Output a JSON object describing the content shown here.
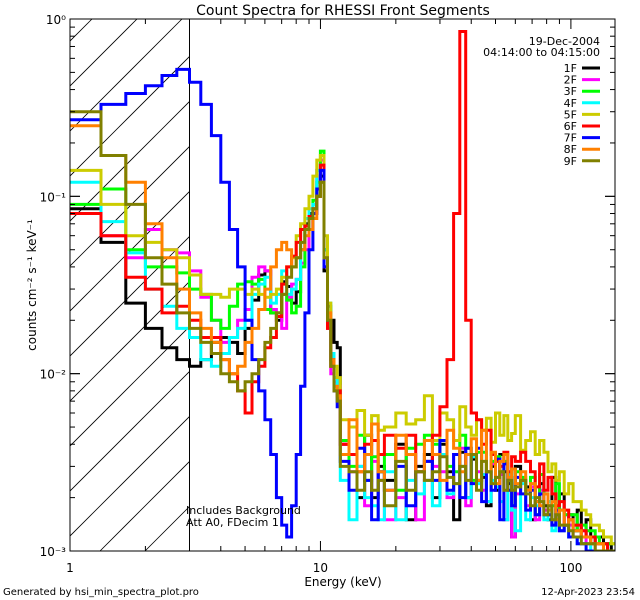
{
  "chart_data": {
    "type": "line",
    "title": "Count Spectra for RHESSI Front Segments",
    "xlabel": "Energy (keV)",
    "ylabel": "counts cm⁻² s⁻¹ keV⁻¹",
    "xscale": "log",
    "yscale": "log",
    "xlim": [
      1,
      150
    ],
    "ylim": [
      0.001,
      1
    ],
    "x_ticks": [
      {
        "value": 1,
        "label": "1"
      },
      {
        "value": 10,
        "label": "10"
      },
      {
        "value": 100,
        "label": "100"
      }
    ],
    "y_ticks": [
      {
        "value": 1,
        "label": "10⁰"
      },
      {
        "value": 0.1,
        "label": "10⁻¹"
      },
      {
        "value": 0.01,
        "label": "10⁻²"
      },
      {
        "value": 0.001,
        "label": "10⁻³"
      }
    ],
    "shaded_region": {
      "x_from": 1.0,
      "x_to": 3.0,
      "style": "hatched"
    },
    "date": "19-Dec-2004",
    "time_range": "04:14:00 to 04:15:00",
    "annotation_line1": "Includes Background",
    "annotation_line2": "Att A0, FDecim 1",
    "footer_left": "Generated by hsi_min_spectra_plot.pro",
    "footer_right": "12-Apr-2023 23:54",
    "bin_edges": [
      1.0,
      1.33,
      1.67,
      2.0,
      2.33,
      2.67,
      3.0,
      3.33,
      3.67,
      4.0,
      4.33,
      4.67,
      5.0,
      5.33,
      5.67,
      6.0,
      6.33,
      6.67,
      7.0,
      7.33,
      7.67,
      8.0,
      8.33,
      8.67,
      9.0,
      9.33,
      9.67,
      10.0,
      10.33,
      10.67,
      11.0,
      11.33,
      11.67,
      12.0,
      13.0,
      14.0,
      15.0,
      16.0,
      17.0,
      18.0,
      20.0,
      22.0,
      24.0,
      26.0,
      28.0,
      30.0,
      32.0,
      34.0,
      36.0,
      38.0,
      40.0,
      42.0,
      44.0,
      46.0,
      48.0,
      50.0,
      52.0,
      54.0,
      56.0,
      58.0,
      60.0,
      63.0,
      66.0,
      69.0,
      72.0,
      75.0,
      78.0,
      81.0,
      84.0,
      87.0,
      90.0,
      94.0,
      98.0,
      102.0,
      106.0,
      110.0,
      115.0,
      120.0,
      125.0,
      130.0,
      135.0,
      140.0,
      145.0,
      150.0
    ],
    "series": [
      {
        "name": "1F",
        "color": "#000000",
        "values": [
          0.085,
          0.055,
          0.025,
          0.018,
          0.014,
          0.012,
          0.011,
          0.012,
          0.015,
          0.016,
          0.015,
          0.013,
          0.018,
          0.026,
          0.036,
          0.038,
          0.022,
          0.02,
          0.033,
          0.031,
          0.025,
          0.029,
          0.05,
          0.07,
          0.08,
          0.08,
          0.1,
          0.13,
          0.038,
          0.024,
          0.02,
          0.015,
          0.014,
          0.004,
          0.0035,
          0.002,
          0.0045,
          0.002,
          0.003,
          0.0025,
          0.004,
          0.0015,
          0.003,
          0.0035,
          0.002,
          0.004,
          0.0028,
          0.0015,
          0.0036,
          0.002,
          0.0033,
          0.0025,
          0.0026,
          0.0018,
          0.003,
          0.0022,
          0.0035,
          0.0028,
          0.0024,
          0.0012,
          0.003,
          0.0025,
          0.0023,
          0.0015,
          0.0019,
          0.0024,
          0.0018,
          0.0015,
          0.0026,
          0.0015,
          0.0021,
          0.0014,
          0.0016,
          0.0013,
          0.0017,
          0.0012,
          0.0015,
          0.0011,
          0.0012,
          0.0012,
          0.0011,
          0.0011,
          0.001
        ]
      },
      {
        "name": "2F",
        "color": "#ff00ff",
        "values": [
          0.08,
          0.06,
          0.045,
          0.065,
          0.05,
          0.048,
          0.038,
          0.027,
          0.02,
          0.015,
          0.016,
          0.02,
          0.023,
          0.035,
          0.04,
          0.038,
          0.023,
          0.022,
          0.018,
          0.027,
          0.032,
          0.034,
          0.042,
          0.05,
          0.065,
          0.08,
          0.14,
          0.16,
          0.05,
          0.018,
          0.01,
          0.009,
          0.0085,
          0.004,
          0.0028,
          0.003,
          0.0018,
          0.0032,
          0.0025,
          0.0015,
          0.002,
          0.0035,
          0.0015,
          0.0025,
          0.003,
          0.0028,
          0.002,
          0.0035,
          0.0038,
          0.0018,
          0.0034,
          0.0028,
          0.0022,
          0.0019,
          0.0031,
          0.0026,
          0.0027,
          0.0015,
          0.0026,
          0.0012,
          0.0021,
          0.0025,
          0.0018,
          0.0023,
          0.0015,
          0.0022,
          0.0017,
          0.0018,
          0.0014,
          0.0016,
          0.0013,
          0.0016,
          0.0014,
          0.0012,
          0.0012,
          0.0013,
          0.0011,
          0.0011,
          0.001,
          0.001,
          0.001,
          0.001,
          0.001
        ]
      },
      {
        "name": "3F",
        "color": "#00ff00",
        "values": [
          0.09,
          0.11,
          0.05,
          0.04,
          0.04,
          0.037,
          0.03,
          0.028,
          0.02,
          0.018,
          0.024,
          0.032,
          0.033,
          0.032,
          0.034,
          0.023,
          0.022,
          0.022,
          0.028,
          0.026,
          0.022,
          0.024,
          0.04,
          0.065,
          0.075,
          0.095,
          0.12,
          0.18,
          0.05,
          0.02,
          0.011,
          0.008,
          0.0075,
          0.0042,
          0.003,
          0.0045,
          0.0025,
          0.0034,
          0.0028,
          0.0035,
          0.0022,
          0.0038,
          0.004,
          0.0045,
          0.004,
          0.0035,
          0.003,
          0.0028,
          0.0045,
          0.0038,
          0.0025,
          0.0036,
          0.0036,
          0.0028,
          0.0032,
          0.0034,
          0.0028,
          0.0032,
          0.0026,
          0.0018,
          0.0028,
          0.0026,
          0.0022,
          0.0026,
          0.0016,
          0.0027,
          0.0021,
          0.0019,
          0.0018,
          0.0024,
          0.0017,
          0.0016,
          0.0016,
          0.0016,
          0.0013,
          0.0014,
          0.0013,
          0.0013,
          0.0012,
          0.0011,
          0.0011,
          0.0011,
          0.0011
        ]
      },
      {
        "name": "4F",
        "color": "#00ffff",
        "values": [
          0.12,
          0.072,
          0.048,
          0.03,
          0.024,
          0.018,
          0.016,
          0.012,
          0.011,
          0.013,
          0.016,
          0.018,
          0.02,
          0.028,
          0.032,
          0.035,
          0.025,
          0.028,
          0.038,
          0.028,
          0.03,
          0.034,
          0.055,
          0.075,
          0.085,
          0.09,
          0.14,
          0.15,
          0.05,
          0.025,
          0.013,
          0.0095,
          0.008,
          0.0025,
          0.0015,
          0.003,
          0.002,
          0.0018,
          0.0015,
          0.0028,
          0.0015,
          0.0025,
          0.0021,
          0.0025,
          0.0018,
          0.0035,
          0.0021,
          0.0024,
          0.003,
          0.002,
          0.0034,
          0.0024,
          0.0027,
          0.0019,
          0.0025,
          0.0023,
          0.0019,
          0.0015,
          0.0027,
          0.0017,
          0.0013,
          0.0024,
          0.0015,
          0.002,
          0.0018,
          0.0021,
          0.0015,
          0.0019,
          0.0013,
          0.0016,
          0.0013,
          0.0014,
          0.0012,
          0.0012,
          0.0011,
          0.0011,
          0.0011,
          0.001,
          0.001,
          0.001,
          0.001,
          0.001,
          0.001
        ]
      },
      {
        "name": "5F",
        "color": "#cccc00",
        "values": [
          0.14,
          0.09,
          0.06,
          0.055,
          0.05,
          0.045,
          0.036,
          0.028,
          0.028,
          0.027,
          0.03,
          0.03,
          0.028,
          0.03,
          0.028,
          0.027,
          0.028,
          0.03,
          0.035,
          0.04,
          0.045,
          0.06,
          0.07,
          0.085,
          0.1,
          0.13,
          0.16,
          0.17,
          0.06,
          0.025,
          0.012,
          0.011,
          0.0095,
          0.0055,
          0.005,
          0.0062,
          0.0045,
          0.0058,
          0.0048,
          0.005,
          0.006,
          0.0052,
          0.0055,
          0.0075,
          0.0042,
          0.006,
          0.0055,
          0.0042,
          0.0065,
          0.005,
          0.0045,
          0.0055,
          0.0048,
          0.0056,
          0.0041,
          0.006,
          0.0045,
          0.0058,
          0.0042,
          0.0046,
          0.0058,
          0.0037,
          0.0042,
          0.0047,
          0.0035,
          0.0042,
          0.0036,
          0.0028,
          0.0031,
          0.0025,
          0.0028,
          0.0021,
          0.0024,
          0.0019,
          0.0019,
          0.0017,
          0.0016,
          0.0014,
          0.0014,
          0.0013,
          0.0012,
          0.0012,
          0.0011
        ]
      },
      {
        "name": "6F",
        "color": "#ff0000",
        "values": [
          0.08,
          0.06,
          0.035,
          0.03,
          0.022,
          0.024,
          0.02,
          0.016,
          0.016,
          0.012,
          0.01,
          0.008,
          0.006,
          0.009,
          0.011,
          0.014,
          0.016,
          0.021,
          0.032,
          0.04,
          0.046,
          0.055,
          0.065,
          0.068,
          0.077,
          0.085,
          0.1,
          0.15,
          0.04,
          0.018,
          0.011,
          0.008,
          0.008,
          0.004,
          0.0035,
          0.0028,
          0.004,
          0.0042,
          0.0035,
          0.0045,
          0.0038,
          0.0045,
          0.0028,
          0.0032,
          0.0045,
          0.0065,
          0.012,
          0.08,
          0.85,
          0.02,
          0.006,
          0.0055,
          0.004,
          0.0048,
          0.0035,
          0.0032,
          0.003,
          0.0036,
          0.0028,
          0.0034,
          0.0032,
          0.0036,
          0.0032,
          0.0028,
          0.0023,
          0.0031,
          0.0022,
          0.0026,
          0.0021,
          0.0018,
          0.0019,
          0.0017,
          0.0015,
          0.0014,
          0.0014,
          0.0013,
          0.0012,
          0.0012,
          0.0011,
          0.0011,
          0.0011,
          0.001,
          0.001
        ]
      },
      {
        "name": "7F",
        "color": "#0000ff",
        "values": [
          0.27,
          0.33,
          0.38,
          0.42,
          0.48,
          0.52,
          0.44,
          0.33,
          0.22,
          0.12,
          0.065,
          0.04,
          0.02,
          0.012,
          0.008,
          0.0055,
          0.0035,
          0.002,
          0.0014,
          0.0012,
          0.0018,
          0.0035,
          0.0085,
          0.022,
          0.05,
          0.08,
          0.11,
          0.14,
          0.04,
          0.02,
          0.012,
          0.008,
          0.0065,
          0.0032,
          0.0022,
          0.0038,
          0.0025,
          0.0015,
          0.0028,
          0.0022,
          0.003,
          0.0018,
          0.0028,
          0.0032,
          0.0025,
          0.0042,
          0.0022,
          0.0035,
          0.002,
          0.0038,
          0.0024,
          0.0038,
          0.0019,
          0.0028,
          0.0022,
          0.0033,
          0.0015,
          0.0031,
          0.0022,
          0.0018,
          0.0026,
          0.0021,
          0.0017,
          0.0022,
          0.0016,
          0.0021,
          0.0016,
          0.0016,
          0.0014,
          0.0017,
          0.0013,
          0.0014,
          0.0012,
          0.0012,
          0.0011,
          0.0011,
          0.001,
          0.001,
          0.001,
          0.001,
          0.001,
          0.001,
          0.001
        ]
      },
      {
        "name": "8F",
        "color": "#ff8000",
        "values": [
          0.25,
          0.17,
          0.12,
          0.07,
          0.045,
          0.03,
          0.022,
          0.018,
          0.015,
          0.012,
          0.01,
          0.011,
          0.015,
          0.018,
          0.023,
          0.03,
          0.04,
          0.05,
          0.055,
          0.05,
          0.04,
          0.045,
          0.05,
          0.06,
          0.065,
          0.075,
          0.1,
          0.12,
          0.045,
          0.022,
          0.012,
          0.0085,
          0.0075,
          0.0035,
          0.0055,
          0.0028,
          0.0035,
          0.0052,
          0.0028,
          0.0022,
          0.0045,
          0.0035,
          0.0028,
          0.0042,
          0.0035,
          0.0025,
          0.0048,
          0.0038,
          0.0028,
          0.0035,
          0.0043,
          0.0025,
          0.0048,
          0.0028,
          0.0036,
          0.0024,
          0.0032,
          0.0035,
          0.0026,
          0.0029,
          0.0024,
          0.0028,
          0.0022,
          0.0024,
          0.0019,
          0.0018,
          0.0021,
          0.0017,
          0.0019,
          0.0015,
          0.0017,
          0.0014,
          0.0015,
          0.0013,
          0.0013,
          0.0012,
          0.0012,
          0.0011,
          0.0011,
          0.0011,
          0.001,
          0.001,
          0.001
        ]
      },
      {
        "name": "9F",
        "color": "#808000",
        "values": [
          0.3,
          0.17,
          0.09,
          0.045,
          0.032,
          0.022,
          0.018,
          0.015,
          0.013,
          0.01,
          0.009,
          0.008,
          0.009,
          0.01,
          0.012,
          0.015,
          0.018,
          0.022,
          0.028,
          0.035,
          0.04,
          0.045,
          0.055,
          0.065,
          0.075,
          0.085,
          0.1,
          0.12,
          0.045,
          0.02,
          0.011,
          0.008,
          0.007,
          0.003,
          0.0028,
          0.0022,
          0.0028,
          0.0022,
          0.0025,
          0.0018,
          0.0032,
          0.0022,
          0.0028,
          0.0025,
          0.0028,
          0.0034,
          0.0026,
          0.0024,
          0.003,
          0.0025,
          0.0035,
          0.0022,
          0.0032,
          0.0028,
          0.0024,
          0.0026,
          0.0028,
          0.0022,
          0.0025,
          0.0022,
          0.0023,
          0.0025,
          0.0021,
          0.0018,
          0.002,
          0.0019,
          0.0016,
          0.0018,
          0.0015,
          0.0016,
          0.0014,
          0.0014,
          0.0013,
          0.0012,
          0.0012,
          0.0011,
          0.0011,
          0.0011,
          0.001,
          0.001,
          0.001,
          0.001,
          0.001
        ]
      }
    ]
  }
}
